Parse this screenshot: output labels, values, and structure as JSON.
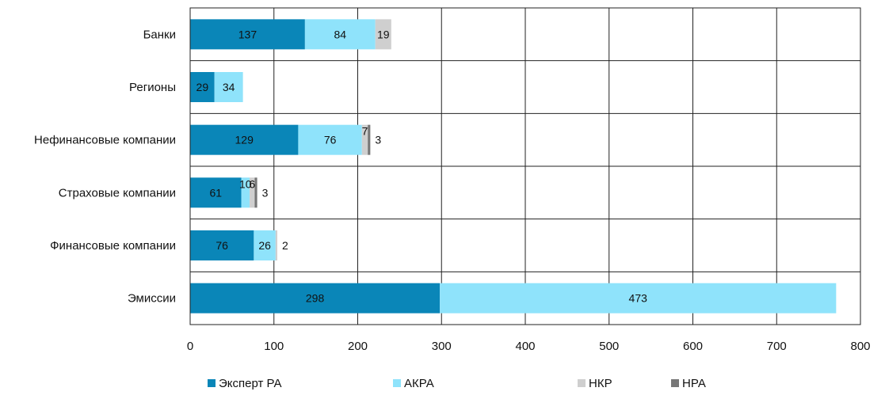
{
  "chart_data": {
    "type": "bar",
    "orientation": "horizontal",
    "stacked": true,
    "categories": [
      "Банки",
      "Регионы",
      "Нефинансовые компании",
      "Страховые компании",
      "Финансовые компании",
      "Эмиссии"
    ],
    "series": [
      {
        "name": "Эксперт РА",
        "color": "#0a86b8",
        "values": [
          137,
          29,
          129,
          61,
          76,
          298
        ]
      },
      {
        "name": "АКРА",
        "color": "#8fe3fb",
        "values": [
          84,
          34,
          76,
          10,
          26,
          473
        ]
      },
      {
        "name": "НКР",
        "color": "#cfcfcf",
        "values": [
          19,
          0,
          7,
          6,
          2,
          0
        ]
      },
      {
        "name": "НРА",
        "color": "#777777",
        "values": [
          0,
          0,
          3,
          3,
          0,
          0
        ]
      }
    ],
    "data_labels": [
      [
        "137",
        "84",
        "19",
        ""
      ],
      [
        "29",
        "34",
        "",
        ""
      ],
      [
        "129",
        "76",
        "7",
        "3"
      ],
      [
        "61",
        "10",
        "6",
        "3"
      ],
      [
        "76",
        "26",
        "2",
        ""
      ],
      [
        "298",
        "473",
        "",
        ""
      ]
    ],
    "xlim": [
      0,
      800
    ],
    "xticks": [
      0,
      100,
      200,
      300,
      400,
      500,
      600,
      700,
      800
    ],
    "grid": true,
    "legend_position": "bottom"
  }
}
